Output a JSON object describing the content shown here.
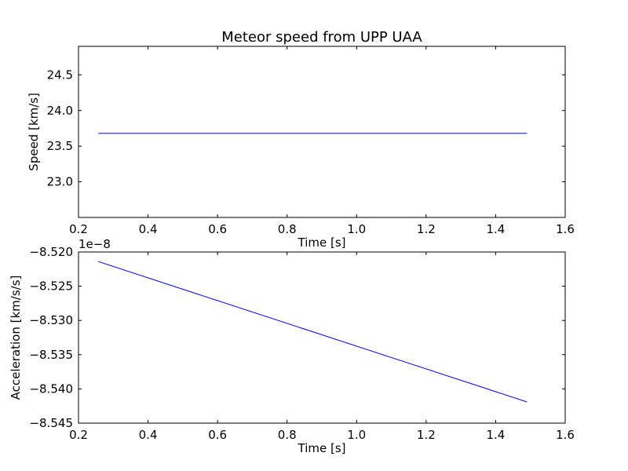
{
  "chart_data": [
    {
      "type": "line",
      "title": "Meteor speed from  UPP UAA",
      "xlabel": "Time [s]",
      "ylabel": "Speed [km/s]",
      "xlim": [
        0.2,
        1.6
      ],
      "ylim": [
        22.5,
        24.9
      ],
      "xticks": [
        0.2,
        0.4,
        0.6,
        0.8,
        1.0,
        1.2,
        1.4,
        1.6
      ],
      "xtick_labels": [
        "0.2",
        "0.4",
        "0.6",
        "0.8",
        "1.0",
        "1.2",
        "1.4",
        "1.6"
      ],
      "yticks": [
        23.0,
        23.5,
        24.0,
        24.5
      ],
      "ytick_labels": [
        "23.0",
        "23.5",
        "24.0",
        "24.5"
      ],
      "grid": false,
      "color": "#0000ff",
      "series": [
        {
          "x": [
            0.257,
            1.49
          ],
          "y": [
            23.68,
            23.68
          ]
        }
      ]
    },
    {
      "type": "line",
      "title": "",
      "xlabel": "Time [s]",
      "ylabel": "Acceleration [km/s/s]",
      "offset_label": "1e−8",
      "xlim": [
        0.2,
        1.6
      ],
      "ylim": [
        -8.545,
        -8.52
      ],
      "xticks": [
        0.2,
        0.4,
        0.6,
        0.8,
        1.0,
        1.2,
        1.4,
        1.6
      ],
      "xtick_labels": [
        "0.2",
        "0.4",
        "0.6",
        "0.8",
        "1.0",
        "1.2",
        "1.4",
        "1.6"
      ],
      "yticks": [
        -8.545,
        -8.54,
        -8.535,
        -8.53,
        -8.525,
        -8.52
      ],
      "ytick_labels": [
        "−8.545",
        "−8.540",
        "−8.535",
        "−8.530",
        "−8.525",
        "−8.520"
      ],
      "grid": false,
      "color": "#0000ff",
      "series": [
        {
          "x": [
            0.257,
            1.49
          ],
          "y": [
            -8.5214,
            -8.5419
          ]
        }
      ]
    }
  ]
}
